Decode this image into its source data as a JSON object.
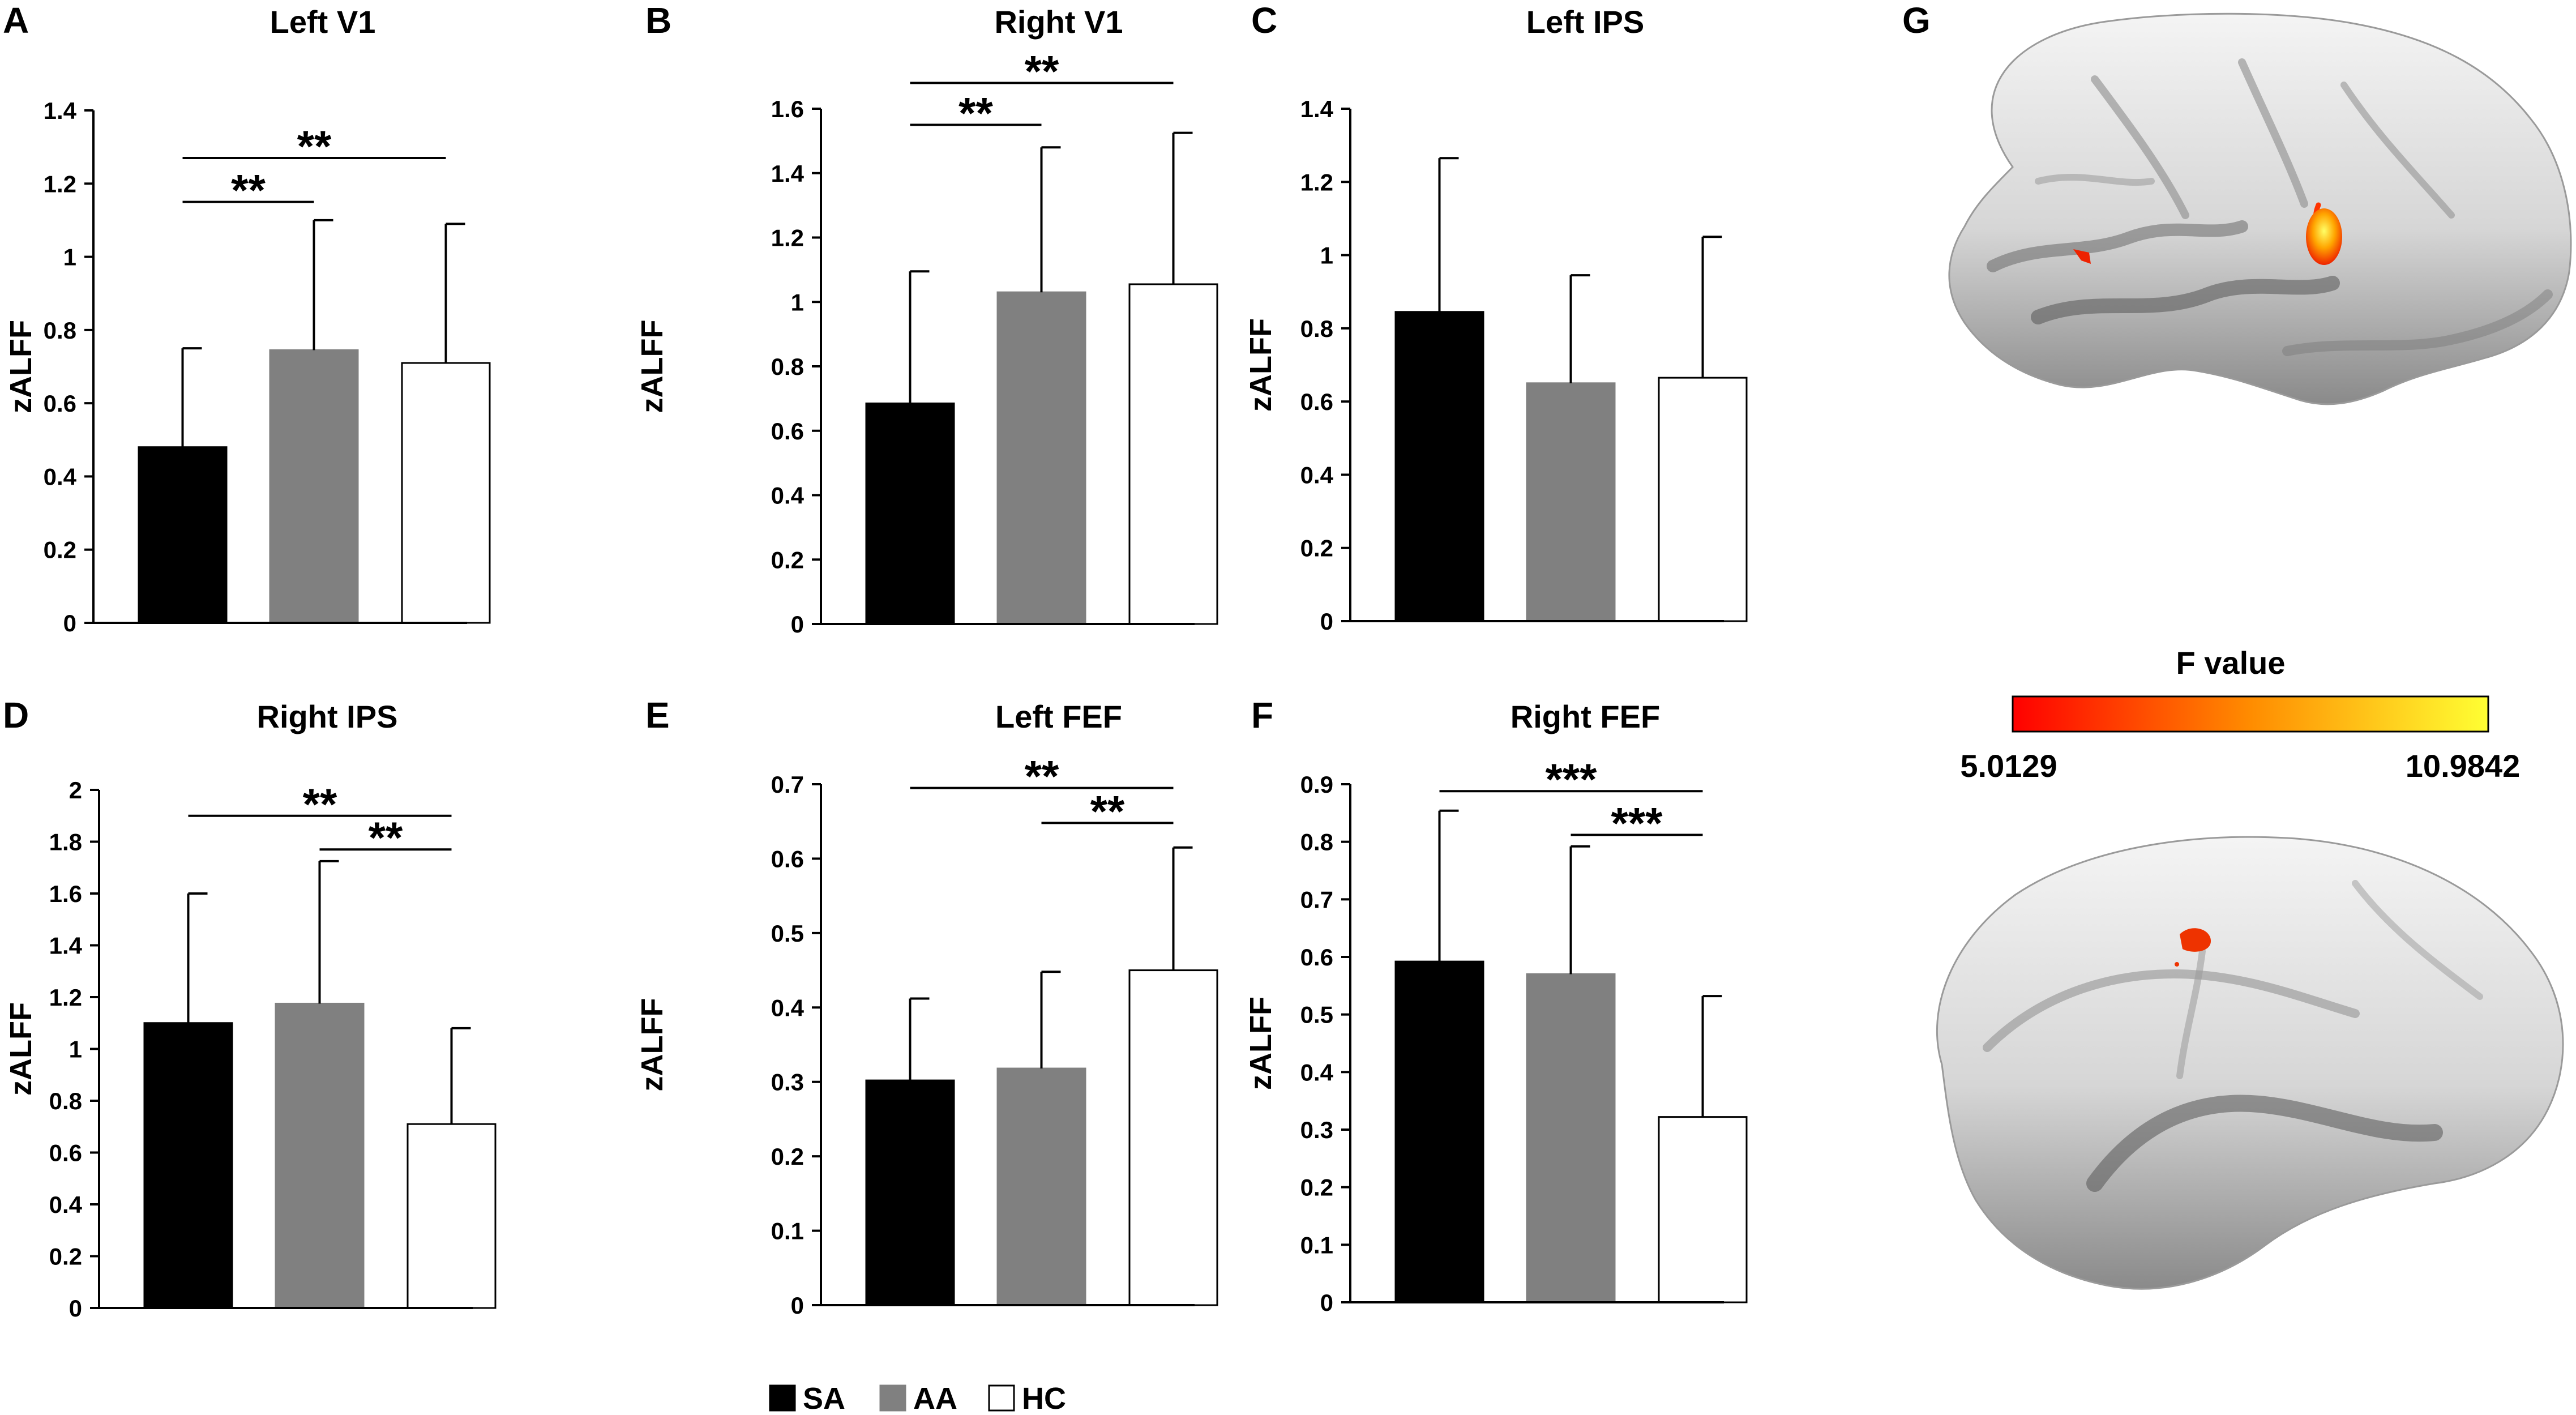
{
  "figure": {
    "legend": [
      {
        "label": "SA",
        "color": "#000000"
      },
      {
        "label": "AA",
        "color": "#808080"
      },
      {
        "label": "HC",
        "color": "#ffffff"
      }
    ],
    "panel_g": {
      "label": "G",
      "colorbar_title": "F value",
      "colorbar_min": "5.0129",
      "colorbar_max": "10.9842",
      "colorbar_colors": [
        "#ff0000",
        "#ff8c00",
        "#ffff33"
      ]
    }
  },
  "chart_data": [
    {
      "panel": "A",
      "type": "bar",
      "title": "Left V1",
      "ylabel": "zALFF",
      "categories": [
        "SA",
        "AA",
        "HC"
      ],
      "values": [
        0.48,
        0.745,
        0.71
      ],
      "errors": [
        0.27,
        0.355,
        0.38
      ],
      "ylim": [
        0,
        1.4
      ],
      "ticks": [
        "0",
        "0.2",
        "0.4",
        "0.6",
        "0.8",
        "1",
        "1.2",
        "1.4"
      ],
      "significance": [
        {
          "from": 0,
          "to": 2,
          "y": 1.27,
          "label": "**"
        },
        {
          "from": 0,
          "to": 1,
          "y": 1.15,
          "label": "**"
        }
      ]
    },
    {
      "panel": "B",
      "type": "bar",
      "title": "Right V1",
      "ylabel": "zALFF",
      "categories": [
        "SA",
        "AA",
        "HC"
      ],
      "values": [
        0.685,
        1.03,
        1.055
      ],
      "errors": [
        0.41,
        0.45,
        0.47
      ],
      "ylim": [
        0,
        1.6
      ],
      "ticks": [
        "0",
        "0.2",
        "0.4",
        "0.6",
        "0.8",
        "1",
        "1.2",
        "1.4",
        "1.6"
      ],
      "significance": [
        {
          "from": 0,
          "to": 2,
          "y": 1.68,
          "label": "**"
        },
        {
          "from": 0,
          "to": 1,
          "y": 1.55,
          "label": "**"
        }
      ]
    },
    {
      "panel": "C",
      "type": "bar",
      "title": "Left IPS",
      "ylabel": "zALFF",
      "categories": [
        "SA",
        "AA",
        "HC"
      ],
      "values": [
        0.845,
        0.65,
        0.665
      ],
      "errors": [
        0.42,
        0.295,
        0.385
      ],
      "ylim": [
        0,
        1.4
      ],
      "ticks": [
        "0",
        "0.2",
        "0.4",
        "0.6",
        "0.8",
        "1",
        "1.2",
        "1.4"
      ],
      "significance": []
    },
    {
      "panel": "D",
      "type": "bar",
      "title": "Right IPS",
      "ylabel": "zALFF",
      "categories": [
        "SA",
        "AA",
        "HC"
      ],
      "values": [
        1.1,
        1.175,
        0.71
      ],
      "errors": [
        0.5,
        0.55,
        0.37
      ],
      "ylim": [
        0,
        2
      ],
      "ticks": [
        "0",
        "0.2",
        "0.4",
        "0.6",
        "0.8",
        "1",
        "1.2",
        "1.4",
        "1.6",
        "1.8",
        "2"
      ],
      "significance": [
        {
          "from": 0,
          "to": 2,
          "y": 1.9,
          "label": "**"
        },
        {
          "from": 1,
          "to": 2,
          "y": 1.77,
          "label": "**"
        }
      ]
    },
    {
      "panel": "E",
      "type": "bar",
      "title": "Left FEF",
      "ylabel": "zALFF",
      "categories": [
        "SA",
        "AA",
        "HC"
      ],
      "values": [
        0.302,
        0.318,
        0.45
      ],
      "errors": [
        0.11,
        0.13,
        0.165
      ],
      "ylim": [
        0,
        0.7
      ],
      "ticks": [
        "0",
        "0.1",
        "0.2",
        "0.3",
        "0.4",
        "0.5",
        "0.6",
        "0.7"
      ],
      "significance": [
        {
          "from": 0,
          "to": 2,
          "y": 0.695,
          "label": "**"
        },
        {
          "from": 1,
          "to": 2,
          "y": 0.648,
          "label": "**"
        }
      ]
    },
    {
      "panel": "F",
      "type": "bar",
      "title": "Right FEF",
      "ylabel": "zALFF",
      "categories": [
        "SA",
        "AA",
        "HC"
      ],
      "values": [
        0.592,
        0.57,
        0.322
      ],
      "errors": [
        0.262,
        0.222,
        0.21
      ],
      "ylim": [
        0,
        0.9
      ],
      "ticks": [
        "0",
        "0.1",
        "0.2",
        "0.3",
        "0.4",
        "0.5",
        "0.6",
        "0.7",
        "0.8",
        "0.9"
      ],
      "significance": [
        {
          "from": 0,
          "to": 2,
          "y": 0.888,
          "label": "***"
        },
        {
          "from": 1,
          "to": 2,
          "y": 0.812,
          "label": "***"
        }
      ]
    }
  ]
}
